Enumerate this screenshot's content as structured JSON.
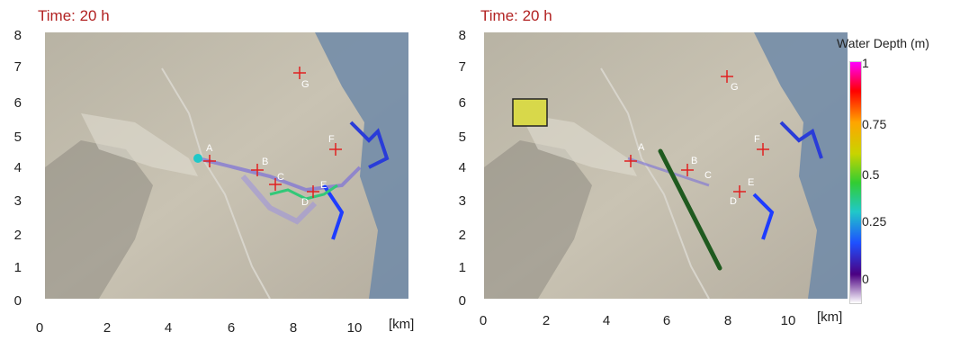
{
  "panels": [
    {
      "time_label": "Time:  20 h",
      "y_ticks": [
        "8",
        "7",
        "6",
        "5",
        "4",
        "3",
        "2",
        "1",
        "0"
      ],
      "x_ticks": [
        "0",
        "2",
        "4",
        "6",
        "8",
        "10"
      ],
      "x_unit": "[km]",
      "markers": [
        {
          "label": "A"
        },
        {
          "label": "B"
        },
        {
          "label": "C"
        },
        {
          "label": "D"
        },
        {
          "label": "E"
        },
        {
          "label": "F"
        },
        {
          "label": "G"
        }
      ]
    },
    {
      "time_label": "Time:  20 h",
      "y_ticks": [
        "8",
        "7",
        "6",
        "5",
        "4",
        "3",
        "2",
        "1",
        "0"
      ],
      "x_ticks": [
        "0",
        "2",
        "4",
        "6",
        "8",
        "10"
      ],
      "x_unit": "[km]",
      "markers": [
        {
          "label": "A"
        },
        {
          "label": "B"
        },
        {
          "label": "C"
        },
        {
          "label": "D"
        },
        {
          "label": "E"
        },
        {
          "label": "F"
        },
        {
          "label": "G"
        }
      ]
    }
  ],
  "legend": {
    "title": "Water Depth (m)",
    "labels": [
      "1",
      "0.75",
      "0.5",
      "0.25",
      "0"
    ],
    "colors": [
      "#ff00ff",
      "#ff0000",
      "#ffa500",
      "#32cd32",
      "#20c8c8",
      "#1e50ff",
      "#ffffff"
    ]
  }
}
